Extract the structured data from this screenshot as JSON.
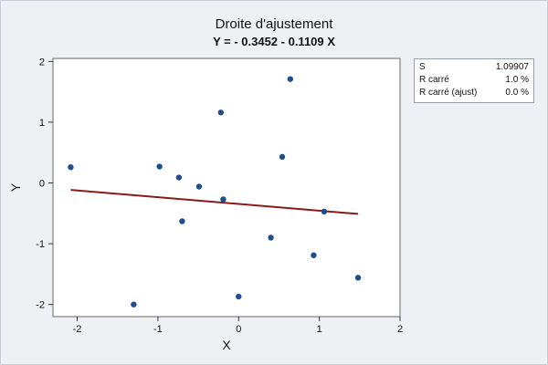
{
  "chart_data": {
    "type": "scatter",
    "title": "Droite d'ajustement",
    "subtitle": "Y = - 0.3452 - 0.1109 X",
    "xlabel": "X",
    "ylabel": "Y",
    "xlim": [
      -2.3,
      2.0
    ],
    "ylim": [
      -2.2,
      2.05
    ],
    "x_ticks": [
      -2,
      -1,
      0,
      1,
      2
    ],
    "y_ticks": [
      2,
      1,
      0,
      -1,
      -2
    ],
    "points": [
      {
        "x": -2.08,
        "y": 0.26
      },
      {
        "x": -1.3,
        "y": -2.0
      },
      {
        "x": -0.98,
        "y": 0.27
      },
      {
        "x": -0.74,
        "y": 0.09
      },
      {
        "x": -0.7,
        "y": -0.63
      },
      {
        "x": -0.49,
        "y": -0.06
      },
      {
        "x": -0.22,
        "y": 1.16
      },
      {
        "x": -0.19,
        "y": -0.27
      },
      {
        "x": 0.0,
        "y": -1.87
      },
      {
        "x": 0.4,
        "y": -0.9
      },
      {
        "x": 0.54,
        "y": 0.43
      },
      {
        "x": 0.64,
        "y": 1.71
      },
      {
        "x": 0.93,
        "y": -1.19
      },
      {
        "x": 1.06,
        "y": -0.47
      },
      {
        "x": 1.48,
        "y": -1.56
      }
    ],
    "fit_line": {
      "intercept": -0.3452,
      "slope": -0.1109,
      "x_range": [
        -2.08,
        1.48
      ],
      "color": "#8b1a1a"
    },
    "point_color": "#1f4e8c",
    "grid": false,
    "stats": [
      {
        "label": "S",
        "value": "1.09907"
      },
      {
        "label": "R carré",
        "value": "1.0 %"
      },
      {
        "label": "R carré (ajust)",
        "value": "0.0 %"
      }
    ]
  }
}
